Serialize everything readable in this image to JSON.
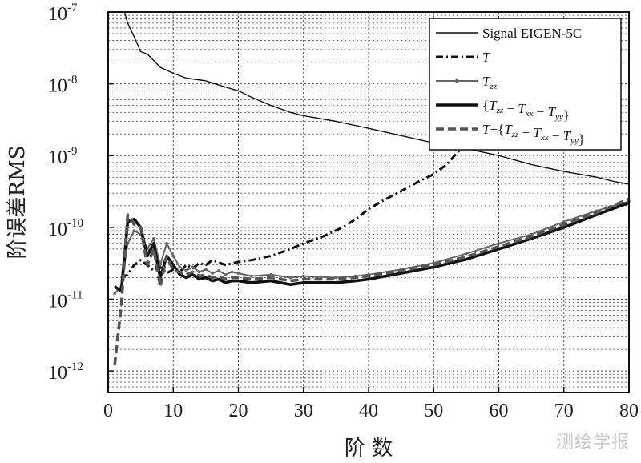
{
  "chart_data": {
    "type": "line",
    "xlabel": "阶 数",
    "ylabel": "阶误差RMS",
    "xlim": [
      0,
      80
    ],
    "ylim_log10": [
      -12.3,
      -7
    ],
    "y_scale": "log",
    "grid": true,
    "legend_position": "top-right",
    "x_ticks": [
      0,
      10,
      20,
      30,
      40,
      50,
      60,
      70,
      80
    ],
    "y_ticks": [
      {
        "base": "10",
        "exp": "-7",
        "value": 1e-07
      },
      {
        "base": "10",
        "exp": "-8",
        "value": 1e-08
      },
      {
        "base": "10",
        "exp": "-9",
        "value": 1e-09
      },
      {
        "base": "10",
        "exp": "-10",
        "value": 1e-10
      },
      {
        "base": "10",
        "exp": "-11",
        "value": 1e-11
      },
      {
        "base": "10",
        "exp": "-12",
        "value": 1e-12
      }
    ],
    "series": [
      {
        "name": "Signal EIGEN-5C",
        "color": "#111111",
        "style": "thin-solid",
        "x": [
          2.5,
          3,
          4,
          5,
          6,
          8,
          10,
          12,
          15,
          18,
          20,
          22,
          25,
          28,
          30,
          35,
          40,
          45,
          50,
          55,
          60,
          65,
          70,
          75,
          78,
          80
        ],
        "y": [
          1e-07,
          7e-08,
          4.5e-08,
          2.8e-08,
          2.6e-08,
          1.7e-08,
          1.4e-08,
          1.2e-08,
          1.1e-08,
          9e-09,
          8e-09,
          6.5e-09,
          5e-09,
          4e-09,
          3.6e-09,
          3e-09,
          2.4e-09,
          1.9e-09,
          1.5e-09,
          1.25e-09,
          1e-09,
          7.5e-10,
          6e-10,
          5e-10,
          4.3e-10,
          4e-10
        ]
      },
      {
        "name": "T",
        "color": "#111111",
        "style": "dash-dot",
        "x": [
          2,
          3,
          4,
          5,
          6,
          7,
          8,
          9,
          10,
          11,
          12,
          13,
          14,
          15,
          16,
          18,
          20,
          22,
          25,
          28,
          30,
          33,
          36,
          38,
          40,
          42,
          45,
          48,
          50,
          52,
          54
        ],
        "y": [
          2e-11,
          2.2e-11,
          3e-11,
          3.5e-11,
          3e-11,
          2.5e-11,
          2.8e-11,
          2.3e-11,
          2.6e-11,
          2.4e-11,
          3e-11,
          2.7e-11,
          3.2e-11,
          3e-11,
          3.5e-11,
          3e-11,
          3.3e-11,
          3.5e-11,
          4e-11,
          5e-11,
          6e-11,
          7.5e-11,
          1e-10,
          1.3e-10,
          1.8e-10,
          2.3e-10,
          3.2e-10,
          4.5e-10,
          5.5e-10,
          7.5e-10,
          1.2e-09
        ]
      },
      {
        "name": "T_zz",
        "color": "#666666",
        "style": "solid-dot",
        "x": [
          1,
          2,
          3,
          4,
          5,
          6,
          7,
          8,
          9,
          10,
          11,
          12,
          13,
          14,
          15,
          16,
          17,
          18,
          19,
          20,
          22,
          25,
          28,
          30,
          35,
          38,
          40,
          45,
          50,
          55,
          60,
          65,
          70,
          75,
          80
        ],
        "y": [
          1.2e-11,
          1.5e-11,
          6e-11,
          9e-11,
          8e-11,
          5e-11,
          7e-11,
          3e-11,
          6e-11,
          4e-11,
          2.8e-11,
          2.5e-11,
          2.8e-11,
          2.4e-11,
          2.6e-11,
          2.3e-11,
          2.5e-11,
          2.2e-11,
          2.4e-11,
          2.3e-11,
          2.1e-11,
          2.2e-11,
          2e-11,
          2.1e-11,
          2e-11,
          2.1e-11,
          2.2e-11,
          2.6e-11,
          3.2e-11,
          4.3e-11,
          6e-11,
          8e-11,
          1.2e-10,
          1.7e-10,
          2.3e-10
        ]
      },
      {
        "name": "{T_zz − T_xx − T_yy}",
        "color": "#111111",
        "style": "thick-solid",
        "x": [
          1,
          2,
          3,
          4,
          5,
          6,
          7,
          8,
          9,
          10,
          11,
          12,
          13,
          14,
          15,
          16,
          17,
          18,
          19,
          20,
          22,
          25,
          28,
          30,
          35,
          38,
          40,
          45,
          50,
          55,
          60,
          65,
          70,
          75,
          80
        ],
        "y": [
          1.5e-11,
          1.3e-11,
          1.2e-10,
          1.3e-10,
          1e-10,
          4e-11,
          6e-11,
          2e-11,
          4e-11,
          3e-11,
          2.2e-11,
          2e-11,
          2.2e-11,
          1.9e-11,
          2e-11,
          1.8e-11,
          1.9e-11,
          1.7e-11,
          1.8e-11,
          1.8e-11,
          1.7e-11,
          1.8e-11,
          1.6e-11,
          1.7e-11,
          1.7e-11,
          1.8e-11,
          1.9e-11,
          2.3e-11,
          2.8e-11,
          3.6e-11,
          5e-11,
          7e-11,
          1e-10,
          1.5e-10,
          2.2e-10
        ]
      },
      {
        "name": "T+{T_zz − T_xx − T_yy}",
        "color": "#555555",
        "style": "thick-dashed",
        "x": [
          1,
          2,
          3,
          4,
          5,
          6,
          7,
          8,
          9,
          10,
          11,
          12,
          13,
          14,
          15,
          16,
          17,
          18,
          19,
          20,
          22,
          25,
          28,
          30,
          35,
          38,
          40,
          45,
          50,
          55,
          60,
          65,
          70,
          75,
          80
        ],
        "y": [
          1.2e-12,
          8e-12,
          1.5e-10,
          1.1e-10,
          1e-10,
          3e-11,
          5e-11,
          1.5e-11,
          4e-11,
          2.5e-11,
          2.4e-11,
          2.2e-11,
          2.4e-11,
          2.1e-11,
          2.2e-11,
          2e-11,
          2.1e-11,
          1.9e-11,
          2e-11,
          2e-11,
          1.9e-11,
          2e-11,
          1.8e-11,
          1.9e-11,
          1.9e-11,
          2e-11,
          2.1e-11,
          2.5e-11,
          3e-11,
          3.9e-11,
          5.4e-11,
          7.5e-11,
          1.1e-10,
          1.6e-10,
          2.5e-10
        ]
      }
    ]
  },
  "watermark": "测绘学报"
}
